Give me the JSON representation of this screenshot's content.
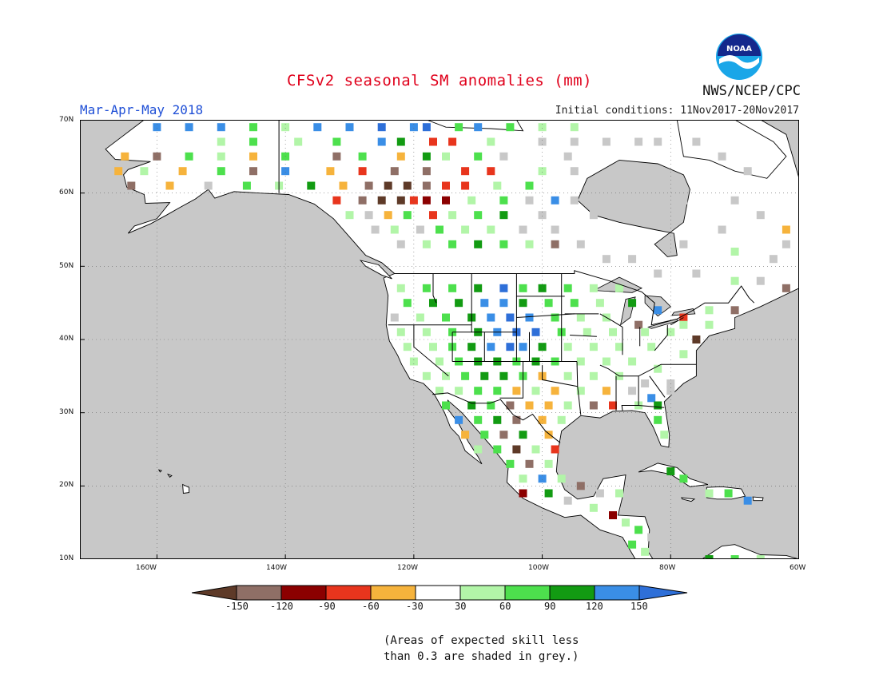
{
  "header": {
    "title": "CFSv2 seasonal SM anomalies (mm)",
    "period": "Mar-Apr-May 2018",
    "initial_conditions": "Initial conditions: 11Nov2017-20Nov2017",
    "agency": "NWS/NCEP/CPC",
    "logo_text": "NOAA",
    "title_color": "#e0001b",
    "period_color": "#1f4fd6"
  },
  "map": {
    "lat_labels": [
      "70N",
      "60N",
      "50N",
      "40N",
      "30N",
      "20N",
      "10N"
    ],
    "lon_labels": [
      "160W",
      "140W",
      "120W",
      "100W",
      "80W",
      "60W"
    ],
    "lat_range": [
      10,
      70
    ],
    "lon_range": [
      -172,
      -60
    ],
    "grey_meaning": "no-skill",
    "land_color": "#ffffff",
    "ocean_color": "#c8c8c8"
  },
  "legend": {
    "labels": [
      "-150",
      "-120",
      "-90",
      "-60",
      "-30",
      "30",
      "60",
      "90",
      "120",
      "150"
    ],
    "colors": [
      "#5e3a28",
      "#8f6f66",
      "#8b0000",
      "#e8351d",
      "#f6b33c",
      "#ffffff",
      "#b2f5a8",
      "#4de04d",
      "#129b12",
      "#3a8ee6",
      "#2e6fd8"
    ]
  },
  "note": {
    "line1": "(Areas of expected skill less",
    "line2": "than 0.3 are shaded in grey.)"
  }
}
